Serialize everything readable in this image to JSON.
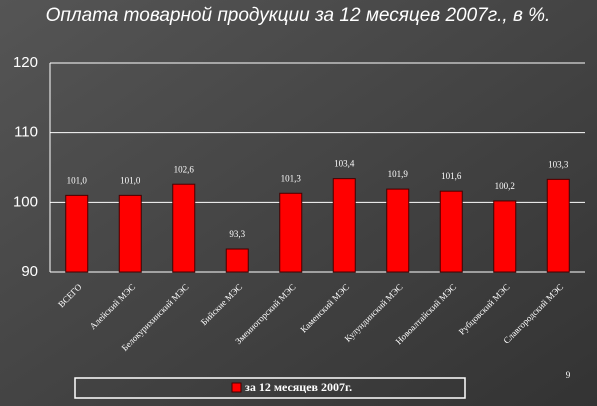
{
  "chart_data": {
    "type": "bar",
    "title": "Оплата товарной продукции за 12 месяцев 2007г., в %.",
    "categories": [
      "ВСЕГО",
      "Алейский МЭС",
      "Белокурихинский МЭС",
      "Бийские МЭС",
      "Змеиногорский МЭС",
      "Каменский МЭС",
      "Кулундинский МЭС",
      "Новоалтайский МЭС",
      "Рубцовский МЭС",
      "Славгородский МЭС"
    ],
    "series": [
      {
        "name": "за 12 месяцев 2007г.",
        "color": "#ff0000",
        "values": [
          101.0,
          101.0,
          102.6,
          93.3,
          101.3,
          103.4,
          101.9,
          101.6,
          100.2,
          103.3
        ],
        "value_labels": [
          "101,0",
          "101,0",
          "102,6",
          "93,3",
          "101,3",
          "103,4",
          "101,9",
          "101,6",
          "100,2",
          "103,3"
        ]
      }
    ],
    "ylim": [
      90,
      120
    ],
    "yticks": [
      90,
      100,
      110,
      120
    ],
    "grid": true,
    "legend": "bottom",
    "page_number": "9"
  }
}
